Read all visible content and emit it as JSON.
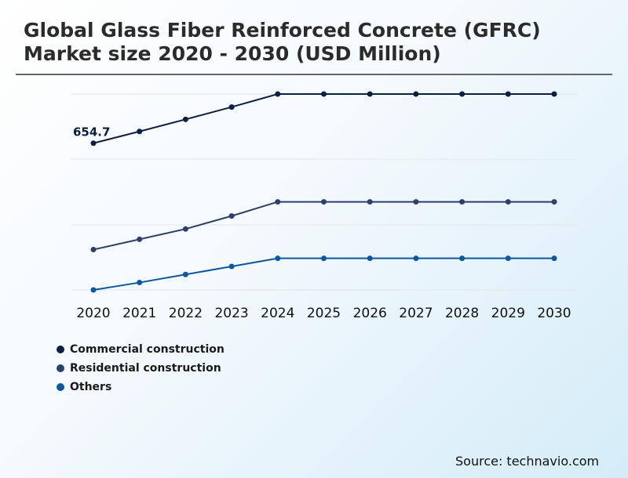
{
  "title": "Global Glass Fiber Reinforced Concrete (GFRC) Market size 2020 - 2030 (USD Million)",
  "source": "Source: technavio.com",
  "chart_data": {
    "type": "line",
    "title": "Global Glass Fiber Reinforced Concrete (GFRC) Market size 2020 - 2030 (USD Million)",
    "xlabel": "",
    "ylabel": "",
    "grid": true,
    "legend_position": "bottom-left",
    "ylim": [
      0,
      1000
    ],
    "categories": [
      "2020",
      "2021",
      "2022",
      "2023",
      "2024",
      "2025",
      "2026",
      "2027",
      "2028",
      "2029",
      "2030"
    ],
    "series": [
      {
        "name": "Commercial construction",
        "color": "#0b1f45",
        "values": [
          654.7,
          707,
          761,
          816,
          874,
          874,
          874,
          874,
          874,
          874,
          874
        ]
      },
      {
        "name": "Residential construction",
        "color": "#2e3f6e",
        "values": [
          180,
          226,
          272,
          330,
          393,
          393,
          393,
          393,
          393,
          393,
          393
        ]
      },
      {
        "name": "Others",
        "color": "#0d57a0",
        "values": [
          0,
          33,
          69,
          105,
          141,
          141,
          141,
          141,
          141,
          141,
          141
        ]
      }
    ],
    "data_labels": [
      {
        "series": 0,
        "index": 0,
        "text": "654.7"
      }
    ]
  }
}
